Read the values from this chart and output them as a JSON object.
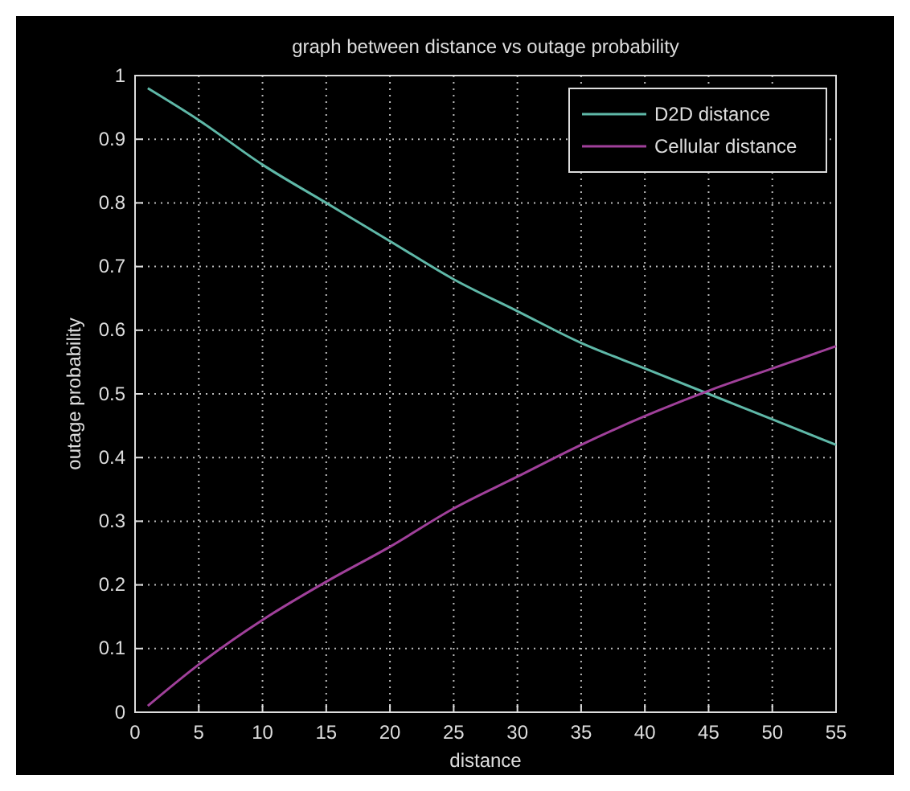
{
  "chart_data": {
    "type": "line",
    "title": "graph between distance vs outage probability",
    "xlabel": "distance",
    "ylabel": "outage probability",
    "xlim": [
      0,
      55
    ],
    "xticks": [
      0,
      5,
      10,
      15,
      20,
      25,
      30,
      35,
      40,
      45,
      50,
      55
    ],
    "ylim": [
      0,
      1
    ],
    "yticks": [
      0,
      0.1,
      0.2,
      0.3,
      0.4,
      0.5,
      0.6,
      0.7,
      0.8,
      0.9,
      1
    ],
    "grid": true,
    "legend": "top right",
    "line_style": "solid",
    "marker": "none",
    "series": [
      {
        "name": "D2D distance",
        "color": "#5fb8a8",
        "x": [
          1,
          5,
          10,
          15,
          20,
          25,
          30,
          35,
          40,
          45,
          50,
          55
        ],
        "values": [
          0.98,
          0.93,
          0.86,
          0.8,
          0.74,
          0.68,
          0.63,
          0.58,
          0.54,
          0.5,
          0.46,
          0.42
        ]
      },
      {
        "name": "Cellular distance",
        "color": "#a0409a",
        "x": [
          1,
          5,
          10,
          15,
          20,
          25,
          30,
          35,
          40,
          45,
          50,
          55
        ],
        "values": [
          0.01,
          0.075,
          0.145,
          0.205,
          0.26,
          0.32,
          0.37,
          0.42,
          0.465,
          0.505,
          0.54,
          0.575
        ]
      }
    ]
  }
}
